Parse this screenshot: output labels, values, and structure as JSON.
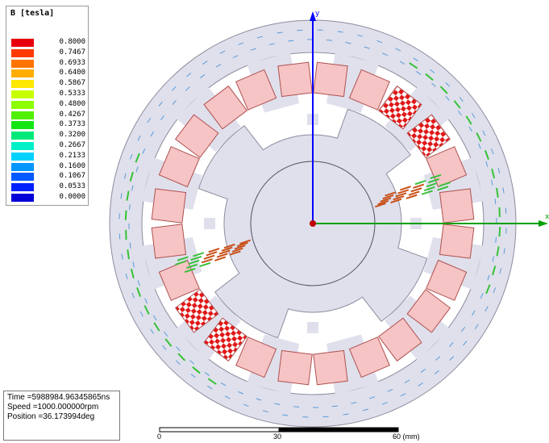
{
  "legend": {
    "title": "B [tesla]",
    "entries": [
      {
        "value": "0.8000",
        "color": "#e8000b"
      },
      {
        "value": "0.7467",
        "color": "#ff3a00"
      },
      {
        "value": "0.6933",
        "color": "#ff7400"
      },
      {
        "value": "0.6400",
        "color": "#ffae00"
      },
      {
        "value": "0.5867",
        "color": "#ffe800"
      },
      {
        "value": "0.5333",
        "color": "#c8ff00"
      },
      {
        "value": "0.4800",
        "color": "#8cff00"
      },
      {
        "value": "0.4267",
        "color": "#50f000"
      },
      {
        "value": "0.3733",
        "color": "#14e614"
      },
      {
        "value": "0.3200",
        "color": "#00e87a"
      },
      {
        "value": "0.2667",
        "color": "#00f0c8"
      },
      {
        "value": "0.2133",
        "color": "#00d2ff"
      },
      {
        "value": "0.1600",
        "color": "#0096ff"
      },
      {
        "value": "0.1067",
        "color": "#005aff"
      },
      {
        "value": "0.0533",
        "color": "#0020ff"
      },
      {
        "value": "0.0000",
        "color": "#0000d8"
      }
    ]
  },
  "info": {
    "time": "Time    =5988984.96345865ns",
    "speed": "Speed   =1000.000000rpm",
    "position": "Position =36.173994deg"
  },
  "scale": {
    "label_0": "0",
    "label_30": "30",
    "label_60": "60 (mm)"
  },
  "axes": {
    "y_label": "y",
    "x_label": "x"
  },
  "colors": {
    "geometry_fill": "#dfe0ec",
    "geometry_stroke": "#8c8c9e",
    "coil_fill": "#f6c4c4",
    "coil_stroke": "#b05050",
    "active_coil": "#e02020",
    "axis_y": "#0000ff",
    "axis_x": "#00a000"
  }
}
